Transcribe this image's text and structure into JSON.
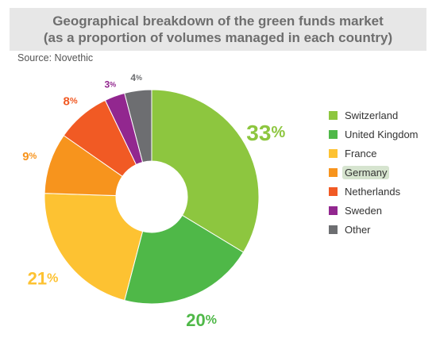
{
  "header": {
    "title_line1": "Geographical breakdown of the green funds market",
    "title_line2": "(as a proportion of volumes managed in each country)",
    "source": "Source: Novethic"
  },
  "chart_data": {
    "type": "pie",
    "title": "Geographical breakdown of the green funds market (as a proportion of volumes managed in each country)",
    "subtitle": "Source: Novethic",
    "donut": true,
    "legend_placement": "right",
    "unit": "%",
    "categories": [
      "Switzerland",
      "United Kingdom",
      "France",
      "Germany",
      "Netherlands",
      "Sweden",
      "Other"
    ],
    "values": [
      33,
      20,
      21,
      9,
      8,
      3,
      4
    ],
    "colors": [
      "#8dc63f",
      "#4fb848",
      "#fdc232",
      "#f7941d",
      "#f15a24",
      "#92278f",
      "#6d6e71"
    ],
    "data_labels": [
      "33",
      "20",
      "21",
      "9",
      "8",
      "3",
      "4"
    ],
    "label_suffix": "%",
    "highlighted_legend_entry": "Germany"
  }
}
